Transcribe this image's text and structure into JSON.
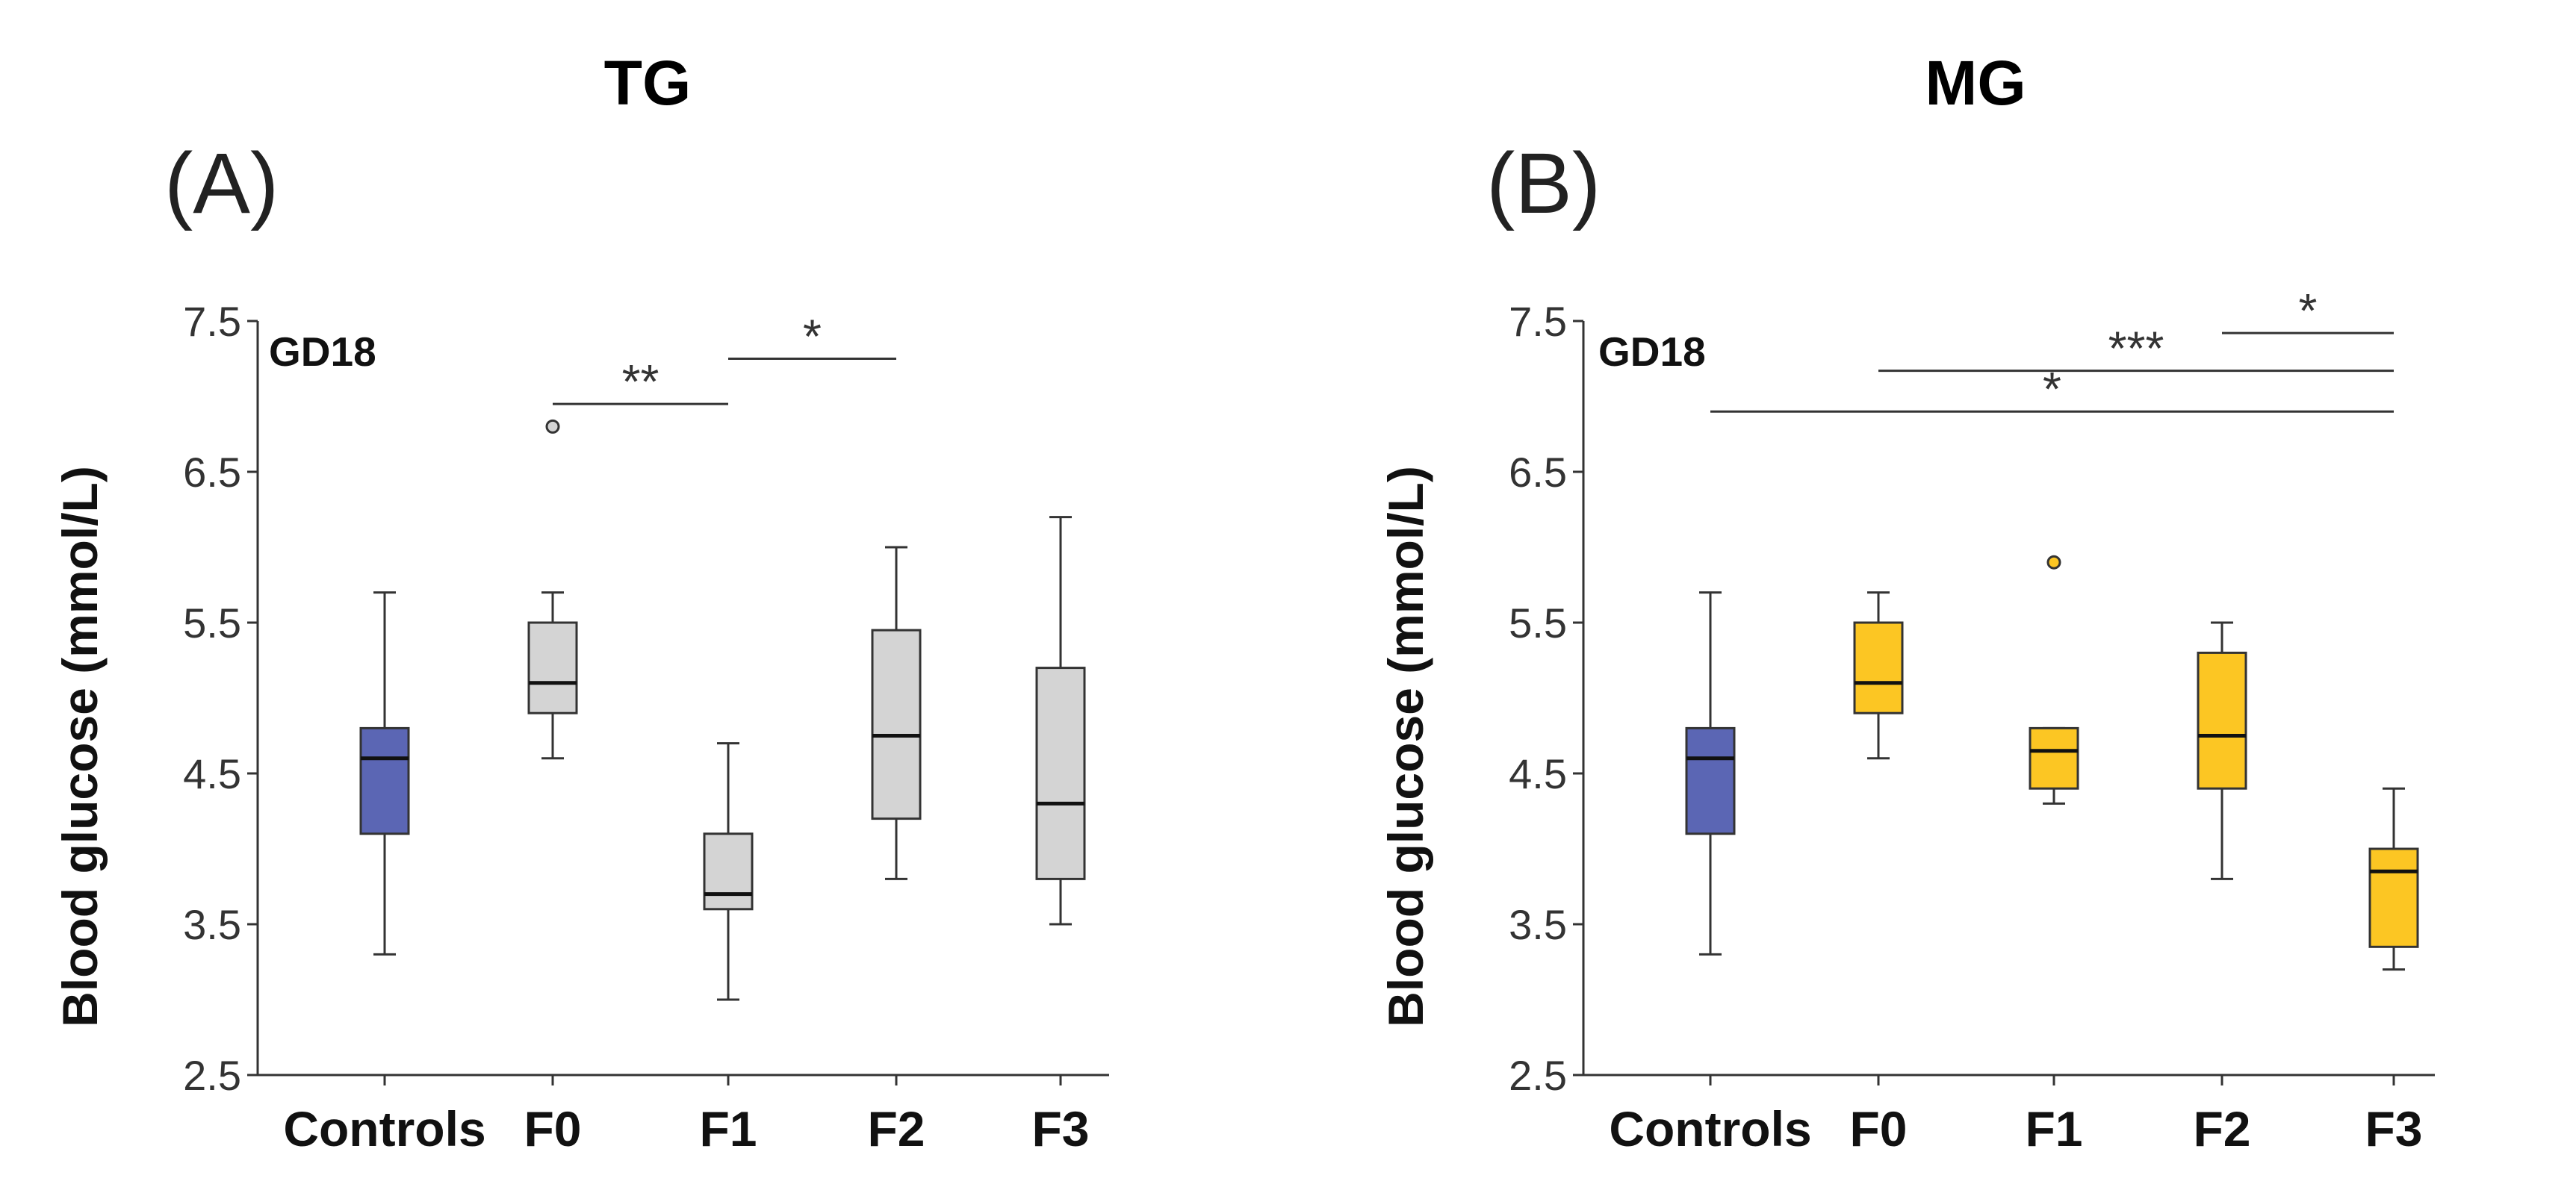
{
  "chart_data": [
    {
      "type": "box",
      "title": "TG",
      "panel_label": "(A)",
      "subtitle": "GD18",
      "ylabel": "Blood glucose (mmol/L)",
      "ylim": [
        2.5,
        7.5
      ],
      "yticks": [
        "2.5",
        "3.5",
        "4.5",
        "5.5",
        "6.5",
        "7.5"
      ],
      "categories": [
        "Controls",
        "F0",
        "F1",
        "F2",
        "F3"
      ],
      "colors": [
        "#5b66b4",
        "#d4d4d4",
        "#d4d4d4",
        "#d4d4d4",
        "#d4d4d4"
      ],
      "boxes": [
        {
          "category": "Controls",
          "whisker_low": 3.3,
          "q1": 4.1,
          "median": 4.6,
          "q3": 4.8,
          "whisker_high": 5.7,
          "outliers": []
        },
        {
          "category": "F0",
          "whisker_low": 4.6,
          "q1": 4.9,
          "median": 5.1,
          "q3": 5.5,
          "whisker_high": 5.7,
          "outliers": [
            6.8
          ]
        },
        {
          "category": "F1",
          "whisker_low": 3.0,
          "q1": 3.6,
          "median": 3.7,
          "q3": 4.1,
          "whisker_high": 4.7,
          "outliers": []
        },
        {
          "category": "F2",
          "whisker_low": 3.8,
          "q1": 4.2,
          "median": 4.75,
          "q3": 5.45,
          "whisker_high": 6.0,
          "outliers": []
        },
        {
          "category": "F3",
          "whisker_low": 3.5,
          "q1": 3.8,
          "median": 4.3,
          "q3": 5.2,
          "whisker_high": 6.2,
          "outliers": []
        }
      ],
      "significance": [
        {
          "from": "F0",
          "to": "F1",
          "y": 6.95,
          "label": "**"
        },
        {
          "from": "F1",
          "to": "F2",
          "y": 7.25,
          "label": "*"
        }
      ]
    },
    {
      "type": "box",
      "title": "MG",
      "panel_label": "(B)",
      "subtitle": "GD18",
      "ylabel": "Blood glucose (mmol/L)",
      "ylim": [
        2.5,
        7.5
      ],
      "yticks": [
        "2.5",
        "3.5",
        "4.5",
        "5.5",
        "6.5",
        "7.5"
      ],
      "categories": [
        "Controls",
        "F0",
        "F1",
        "F2",
        "F3"
      ],
      "colors": [
        "#5b66b4",
        "#fcc623",
        "#fcc623",
        "#fcc623",
        "#fcc623"
      ],
      "boxes": [
        {
          "category": "Controls",
          "whisker_low": 3.3,
          "q1": 4.1,
          "median": 4.6,
          "q3": 4.8,
          "whisker_high": 5.7,
          "outliers": []
        },
        {
          "category": "F0",
          "whisker_low": 4.6,
          "q1": 4.9,
          "median": 5.1,
          "q3": 5.5,
          "whisker_high": 5.7,
          "outliers": []
        },
        {
          "category": "F1",
          "whisker_low": 4.3,
          "q1": 4.4,
          "median": 4.65,
          "q3": 4.8,
          "whisker_high": 4.8,
          "outliers": [
            5.9
          ]
        },
        {
          "category": "F2",
          "whisker_low": 3.8,
          "q1": 4.4,
          "median": 4.75,
          "q3": 5.3,
          "whisker_high": 5.5,
          "outliers": []
        },
        {
          "category": "F3",
          "whisker_low": 3.2,
          "q1": 3.35,
          "median": 3.85,
          "q3": 4.0,
          "whisker_high": 4.4,
          "outliers": []
        }
      ],
      "significance": [
        {
          "from": "F2",
          "to": "F3",
          "y": 7.42,
          "label": "*"
        },
        {
          "from": "F0",
          "to": "F3",
          "y": 7.17,
          "label": "***"
        },
        {
          "from": "Controls",
          "to": "F3",
          "y": 6.9,
          "label": "*"
        }
      ]
    }
  ]
}
